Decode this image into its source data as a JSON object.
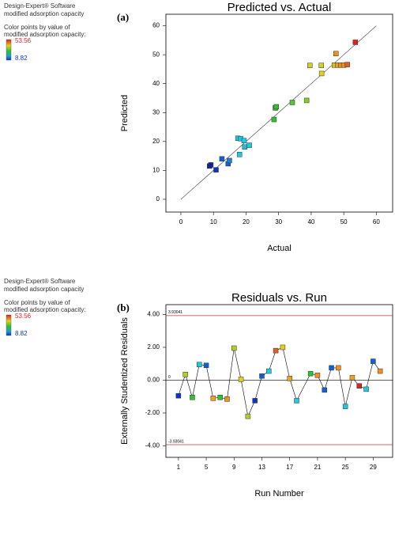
{
  "chart_data": [
    {
      "type": "scatter",
      "panel_label": "(a)",
      "title": "Predicted vs. Actual",
      "x_label": "Actual",
      "y_label": "Predicted",
      "software": "Design-Expert® Software",
      "response": "modified adsorption capacity",
      "legend_title": [
        "Color points by value of",
        "modified adsorption capacity:"
      ],
      "color_range": [
        8.82,
        53.56
      ],
      "color_range_colors": [
        "#1030d0",
        "#e02020"
      ],
      "xlim": [
        -4.6,
        65
      ],
      "ylim": [
        -4.4,
        64
      ],
      "xticks": [
        0,
        10,
        20,
        30,
        40,
        50,
        60
      ],
      "yticks": [
        0,
        10,
        20,
        30,
        40,
        50,
        60
      ],
      "x": [
        8.82,
        9.2,
        10.8,
        12.6,
        14.5,
        14.9,
        17.5,
        18.3,
        18.0,
        19.4,
        19.6,
        21.0,
        28.6,
        29.0,
        29.3,
        34.2,
        38.6,
        39.6,
        43.1,
        43.2,
        47.1,
        47.6,
        48.2,
        49.1,
        50.0,
        51.1,
        53.56
      ],
      "values": [
        11.5,
        11.9,
        10.2,
        14.0,
        12.3,
        13.4,
        21.1,
        21.0,
        15.5,
        20.3,
        18.1,
        18.7,
        27.6,
        31.6,
        32.0,
        33.5,
        34.2,
        46.3,
        46.3,
        43.5,
        46.4,
        50.4,
        46.4,
        46.4,
        46.4,
        46.6,
        54.3
      ],
      "colors": [
        "#1020a0",
        "#1020a0",
        "#1030d0",
        "#1060d0",
        "#1060d0",
        "#2080d0",
        "#20c8e0",
        "#20c8e0",
        "#20c8e0",
        "#20c8e0",
        "#20c0d0",
        "#20c8e0",
        "#30c030",
        "#30c030",
        "#30c030",
        "#50c830",
        "#80d020",
        "#d0d020",
        "#d0d020",
        "#e0d020",
        "#e0c020",
        "#f09020",
        "#e0a020",
        "#f09020",
        "#f09020",
        "#e06020",
        "#e02020"
      ]
    },
    {
      "type": "line",
      "panel_label": "(b)",
      "title": "Residuals vs. Run",
      "x_label": "Run Number",
      "y_label": "Externally Studentized Residuals",
      "software": "Design-Expert® Software",
      "response": "modified adsorption capacity",
      "legend_title": [
        "Color points by value of",
        "modified adsorption capacity:"
      ],
      "color_range": [
        8.82,
        53.56
      ],
      "color_range_colors": [
        "#1030d0",
        "#e02020"
      ],
      "xlim": [
        -0.8,
        31.8
      ],
      "ylim": [
        -4.7,
        4.6
      ],
      "xticks": [
        1,
        5,
        9,
        13,
        17,
        21,
        25,
        29
      ],
      "yticks": [
        {
          "value": 4,
          "label": "4.00"
        },
        {
          "value": 2,
          "label": "2.00"
        },
        {
          "value": 0,
          "label": "0.00"
        },
        {
          "value": -2,
          "label": "-2.00"
        },
        {
          "value": -4,
          "label": "-4.00"
        }
      ],
      "reference_lines": [
        {
          "value": 3.93041,
          "label": "3.93041"
        },
        {
          "value": 0,
          "label": "0"
        },
        {
          "value": -3.93041,
          "label": "-3.93041"
        }
      ],
      "x": [
        1,
        2,
        3,
        4,
        5,
        6,
        7,
        8,
        9,
        10,
        11,
        12,
        13,
        14,
        15,
        16,
        17,
        18,
        20,
        21,
        22,
        23,
        24,
        25,
        26,
        27,
        28,
        29,
        30
      ],
      "values": [
        -0.95,
        0.35,
        -1.05,
        0.95,
        0.9,
        -1.1,
        -1.05,
        -1.15,
        1.95,
        0.05,
        -2.2,
        -1.25,
        0.25,
        0.55,
        1.8,
        2.0,
        0.1,
        -1.25,
        0.4,
        0.3,
        -0.6,
        0.75,
        0.75,
        -1.6,
        0.15,
        -0.35,
        -0.55,
        1.15,
        0.55
      ],
      "colors": [
        "#1030d0",
        "#b0d020",
        "#30c030",
        "#20c8e0",
        "#1060d0",
        "#f0a020",
        "#30c030",
        "#f09020",
        "#b0d020",
        "#e0d020",
        "#b0d020",
        "#1030d0",
        "#1060d0",
        "#20c8e0",
        "#e06020",
        "#e0d020",
        "#f0a020",
        "#20c8e0",
        "#30c030",
        "#f09020",
        "#1060d0",
        "#1060d0",
        "#f09020",
        "#20c8e0",
        "#f0a020",
        "#e02020",
        "#20c8e0",
        "#1060d0",
        "#f09020"
      ]
    }
  ]
}
